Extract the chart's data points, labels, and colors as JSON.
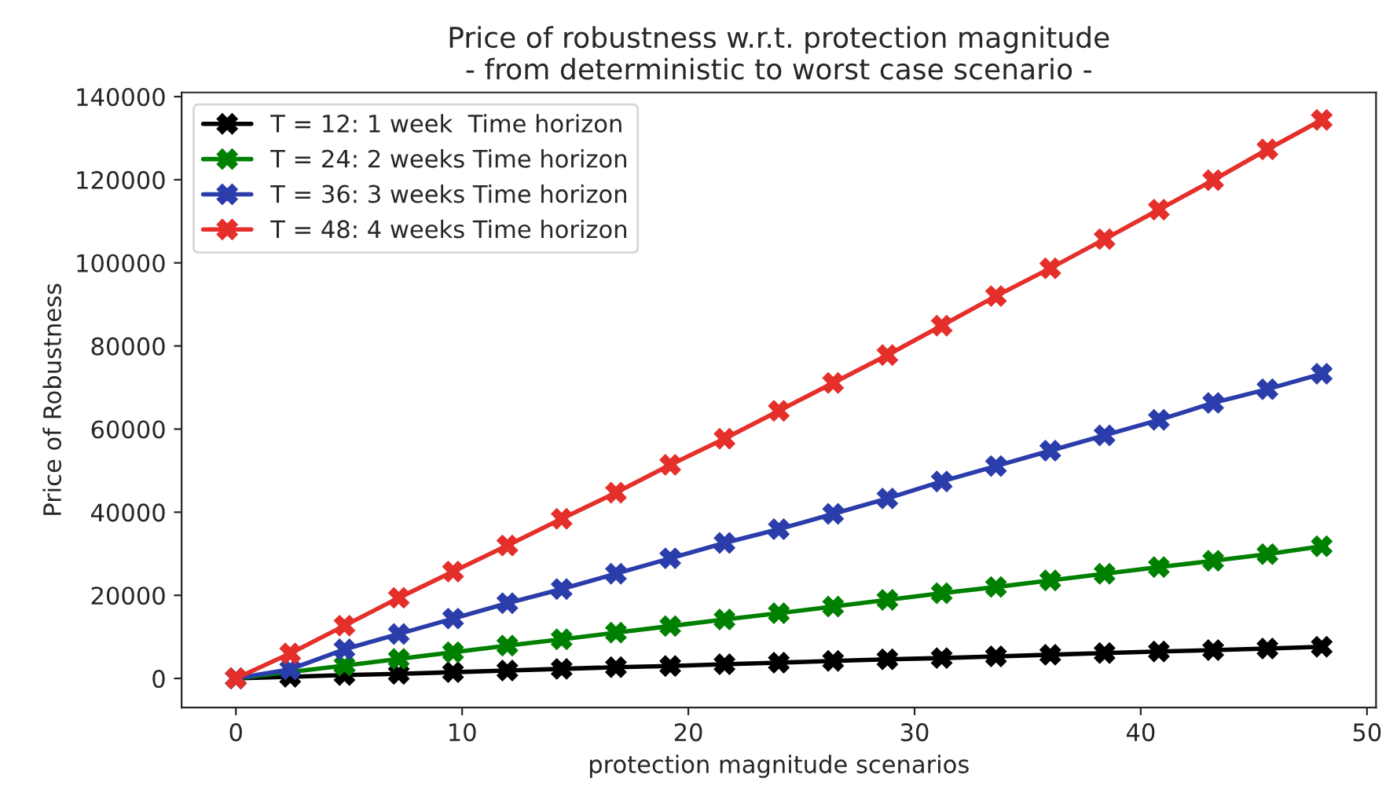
{
  "chart_data": {
    "type": "line",
    "title": "Price of robustness w.r.t. protection magnitude\n- from deterministic to worst case scenario -",
    "xlabel": "protection magnitude scenarios",
    "ylabel": "Price of Robustness",
    "x": [
      0,
      2.4,
      4.8,
      7.2,
      9.6,
      12,
      14.4,
      16.8,
      19.2,
      21.6,
      24,
      26.4,
      28.8,
      31.2,
      33.6,
      36,
      38.4,
      40.8,
      43.2,
      45.6,
      48
    ],
    "series": [
      {
        "name": "T = 12: 1 week  Time horizon",
        "color": "#000000",
        "values": [
          0,
          400,
          800,
          1100,
          1500,
          1900,
          2300,
          2700,
          3000,
          3400,
          3800,
          4200,
          4600,
          4900,
          5300,
          5700,
          6100,
          6500,
          6800,
          7200,
          7600
        ]
      },
      {
        "name": "T = 24: 2 weeks Time horizon",
        "color": "#008000",
        "values": [
          0,
          null,
          3100,
          4700,
          6300,
          7900,
          9400,
          11000,
          12600,
          14200,
          15700,
          17300,
          18900,
          20500,
          22000,
          23600,
          25200,
          26800,
          28300,
          29900,
          31800
        ]
      },
      {
        "name": "T = 36: 3 weeks Time horizon",
        "color": "#2b3daa",
        "values": [
          0,
          2200,
          7000,
          10700,
          14400,
          18100,
          21500,
          25200,
          28900,
          32600,
          35900,
          39600,
          43300,
          47400,
          51100,
          54800,
          58500,
          62200,
          66300,
          69600,
          73300
        ]
      },
      {
        "name": "T = 48: 4 weeks Time horizon",
        "color": "#e52f2a",
        "values": [
          0,
          6000,
          12700,
          19400,
          25700,
          32000,
          38400,
          44700,
          51400,
          57700,
          64400,
          71100,
          77800,
          84900,
          92000,
          98700,
          105700,
          112800,
          119900,
          127300,
          134400
        ]
      }
    ],
    "xlim": [
      -2.4,
      50.4
    ],
    "xticks": [
      0,
      10,
      20,
      30,
      40,
      50
    ],
    "ylim": [
      -7000,
      141000
    ],
    "yticks": [
      0,
      20000,
      40000,
      60000,
      80000,
      100000,
      120000,
      140000
    ],
    "marker": "cross",
    "line_style": "solid",
    "legend": "top left",
    "grid": false
  }
}
